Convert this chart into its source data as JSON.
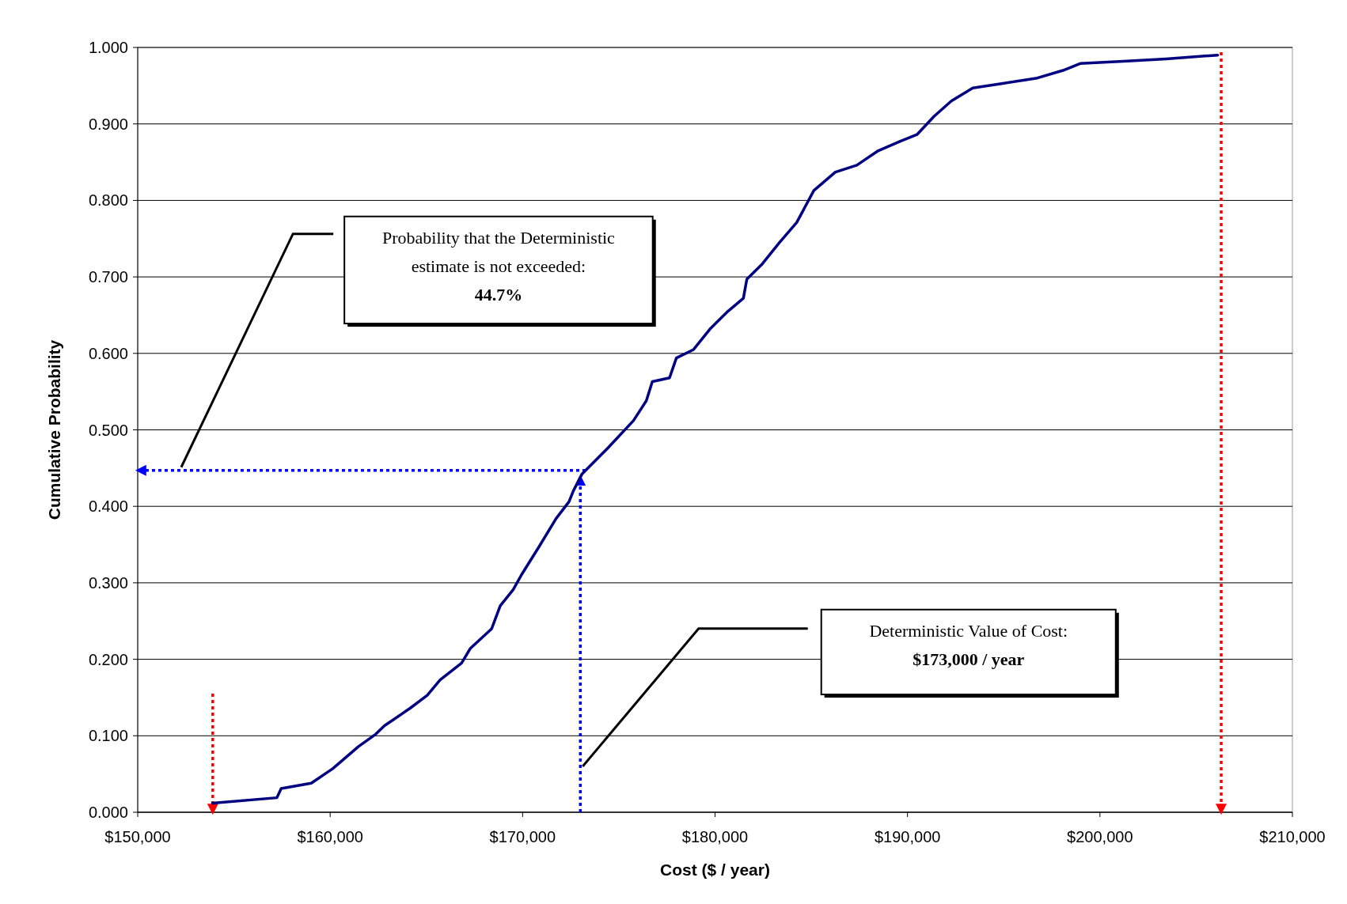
{
  "chart_data": {
    "type": "line",
    "xlabel": "Cost ($ / year)",
    "ylabel": "Cumulative Probability",
    "x": [
      153884,
      157232,
      157455,
      159018,
      160134,
      161473,
      162366,
      162813,
      164152,
      165045,
      165714,
      166830,
      167277,
      168393,
      168839,
      169509,
      169955,
      170848,
      171741,
      172411,
      172634,
      173080,
      174420,
      175759,
      176429,
      176741,
      177634,
      177991,
      178884,
      179777,
      180670,
      181473,
      181652,
      182455,
      183348,
      184241,
      185134,
      186250,
      187366,
      188482,
      189598,
      190491,
      191384,
      192277,
      193393,
      194955,
      196741,
      198080,
      198973,
      201205,
      203438,
      206116
    ],
    "series": [
      {
        "color": "#000080",
        "values": [
          0.012,
          0.019,
          0.031,
          0.038,
          0.057,
          0.086,
          0.102,
          0.113,
          0.136,
          0.153,
          0.173,
          0.195,
          0.214,
          0.24,
          0.27,
          0.291,
          0.311,
          0.347,
          0.384,
          0.406,
          0.42,
          0.442,
          0.476,
          0.512,
          0.538,
          0.563,
          0.568,
          0.594,
          0.605,
          0.633,
          0.655,
          0.672,
          0.697,
          0.717,
          0.745,
          0.771,
          0.813,
          0.837,
          0.846,
          0.865,
          0.877,
          0.886,
          0.91,
          0.93,
          0.947,
          0.953,
          0.96,
          0.97,
          0.979,
          0.982,
          0.985,
          0.99
        ]
      }
    ],
    "xlim": [
      150000,
      210000
    ],
    "xticks": [
      {
        "value": 150000,
        "label": "$150,000"
      },
      {
        "value": 160000,
        "label": "$160,000"
      },
      {
        "value": 170000,
        "label": "$170,000"
      },
      {
        "value": 180000,
        "label": "$180,000"
      },
      {
        "value": 190000,
        "label": "$190,000"
      },
      {
        "value": 200000,
        "label": "$200,000"
      },
      {
        "value": 210000,
        "label": "$210,000"
      }
    ],
    "ylim": [
      0,
      1
    ],
    "yticks": [
      {
        "value": 0,
        "label": "0.000"
      },
      {
        "value": 0.1,
        "label": "0.100"
      },
      {
        "value": 0.2,
        "label": "0.200"
      },
      {
        "value": 0.3,
        "label": "0.300"
      },
      {
        "value": 0.4,
        "label": "0.400"
      },
      {
        "value": 0.5,
        "label": "0.500"
      },
      {
        "value": 0.6,
        "label": "0.600"
      },
      {
        "value": 0.7,
        "label": "0.700"
      },
      {
        "value": 0.8,
        "label": "0.800"
      },
      {
        "value": 0.9,
        "label": "0.900"
      },
      {
        "value": 1,
        "label": "1.000"
      }
    ],
    "grid": "y",
    "marker": "none",
    "line_style": "solid",
    "ref_lines": [
      {
        "axis": "x",
        "value": 153900,
        "color": "#ff0000",
        "line_style": "dotted"
      },
      {
        "axis": "x",
        "value": 206300,
        "color": "#ff0000",
        "line_style": "dotted"
      },
      {
        "axis": "y",
        "value": 0.447,
        "color": "#0000ff",
        "line_style": "dotted"
      },
      {
        "axis": "x",
        "value": 173000,
        "color": "#0000ff",
        "line_style": "dotted"
      }
    ],
    "annotations": [
      "Probability that the Deterministic\nestimate is not exceeded:\n44.7%",
      "Deterministic Value of Cost:\n$173,000 / year"
    ]
  }
}
